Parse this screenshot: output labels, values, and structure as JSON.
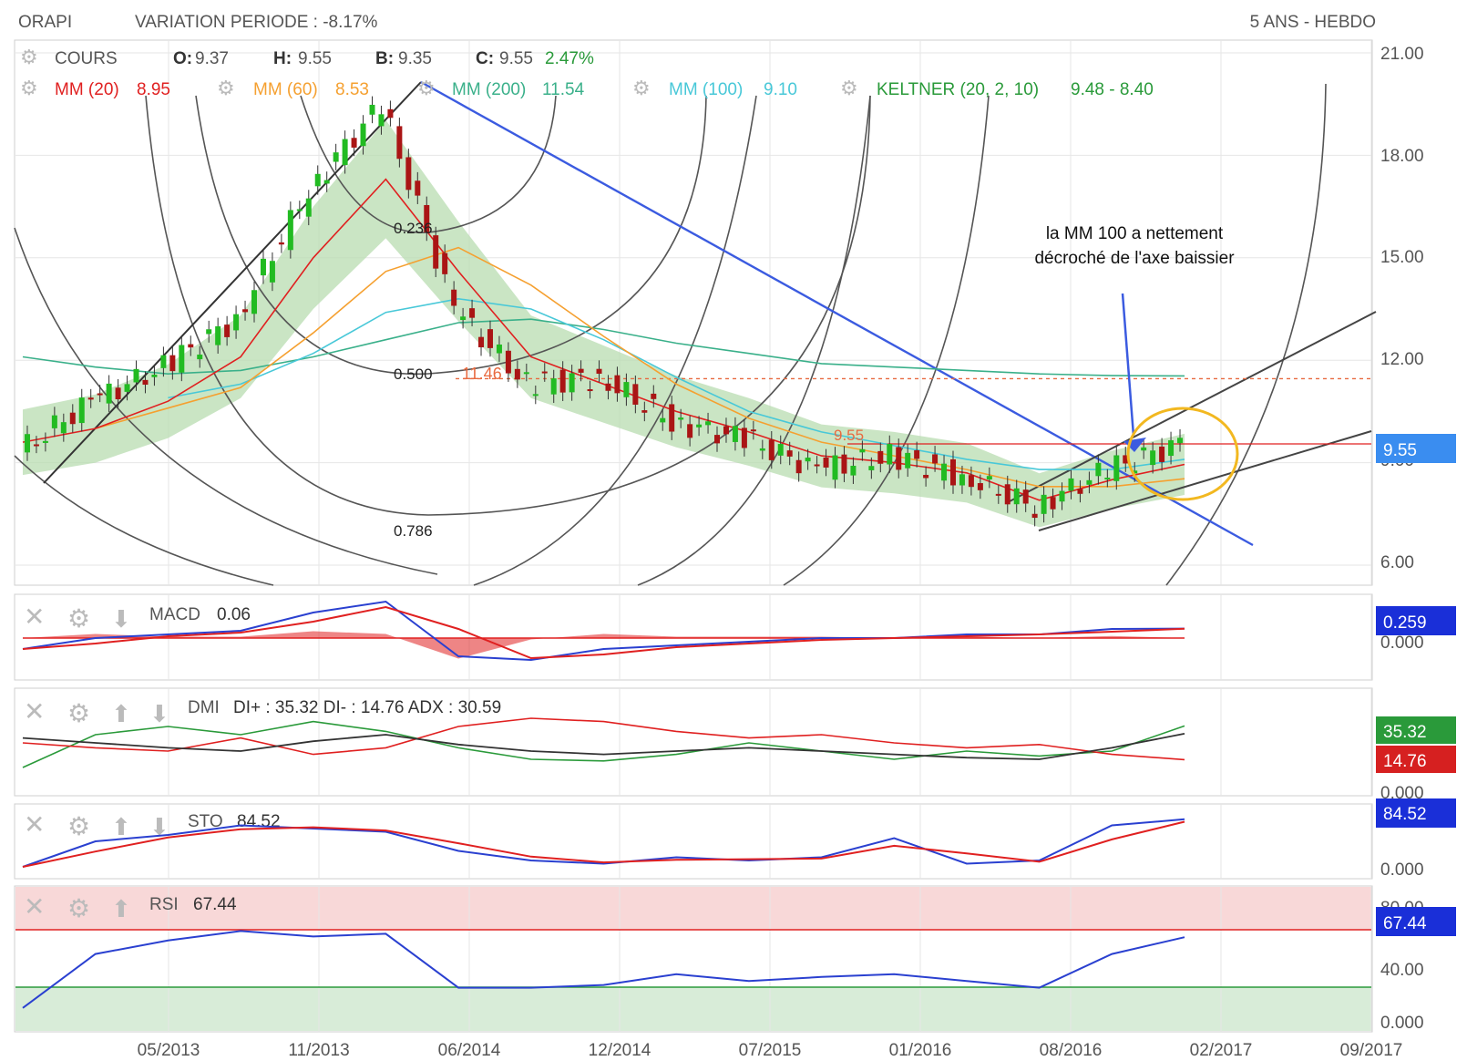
{
  "header": {
    "symbol": "ORAPI",
    "variation": "VARIATION PERIODE : -8.17%",
    "period": "5 ANS - HEBDO"
  },
  "colors": {
    "red": "#e02020",
    "orange": "#f5a030",
    "green": "#2a9a3a",
    "teal": "#3ab08a",
    "cyan": "#48c8d8",
    "blue": "#2a40d0",
    "gray": "#999999",
    "keltner_fill": "#b8dcb0",
    "rsi_over": "#f8d8d8",
    "rsi_under": "#d8ecd8",
    "fib": "#555555",
    "annot_circle": "#f2b820"
  },
  "legend": {
    "cours": "COURS",
    "o_label": "O:",
    "o_value": "9.37",
    "h_label": "H:",
    "h_value": "9.55",
    "b_label": "B:",
    "b_value": "9.35",
    "c_label": "C:",
    "c_value": "9.55",
    "c_change": "2.47%",
    "mm20_label": "MM (20)",
    "mm20_value": "8.95",
    "mm60_label": "MM (60)",
    "mm60_value": "8.53",
    "mm200_label": "MM (200)",
    "mm200_value": "11.54",
    "mm100_label": "MM (100)",
    "mm100_value": "9.10",
    "keltner_label": "KELTNER (20, 2, 10)",
    "keltner_value": "9.48 - 8.40"
  },
  "annotation": {
    "line1": "la MM 100 a nettement",
    "line2": "décroché de l'axe baissier"
  },
  "fib_labels": [
    "0.236",
    "0.500",
    "0.786"
  ],
  "level_labels": {
    "hline_red": "11.46",
    "current": "9.55"
  },
  "price_axis": {
    "ticks": [
      "6.00",
      "9.00",
      "12.00",
      "15.00",
      "18.00",
      "21.00"
    ],
    "badge": "9.55"
  },
  "x_axis": {
    "ticks": [
      "05/2013",
      "11/2013",
      "06/2014",
      "12/2014",
      "07/2015",
      "01/2016",
      "08/2016",
      "02/2017",
      "09/2017"
    ]
  },
  "indicators": {
    "macd": {
      "label": "MACD",
      "value": "0.06",
      "axis_tick": "0.000",
      "badge": "0.259"
    },
    "dmi": {
      "label": "DMI",
      "values": "DI+ : 35.32 DI- : 14.76 ADX : 30.59",
      "axis_tick": "0.000",
      "badge_plus": "35.32",
      "badge_minus": "14.76"
    },
    "sto": {
      "label": "STO",
      "value": "84.52",
      "axis_tick": "0.000",
      "badge": "84.52"
    },
    "rsi": {
      "label": "RSI",
      "value": "67.44",
      "axis_ticks": [
        "0.000",
        "40.00",
        "80.00"
      ],
      "badge": "67.44"
    }
  },
  "chart_data": {
    "type": "line",
    "x": [
      "2013-01",
      "2013-04",
      "2013-07",
      "2013-10",
      "2014-01",
      "2014-04",
      "2014-07",
      "2014-10",
      "2015-01",
      "2015-04",
      "2015-07",
      "2015-10",
      "2016-01",
      "2016-04",
      "2016-07",
      "2016-10",
      "2017-01"
    ],
    "ylim": [
      6,
      21
    ],
    "series": [
      {
        "name": "COURS",
        "values": [
          9.3,
          10.8,
          11.8,
          13.2,
          17.0,
          19.5,
          13.5,
          11.3,
          11.5,
          10.2,
          9.7,
          8.8,
          9.2,
          8.6,
          7.7,
          8.8,
          9.55
        ]
      },
      {
        "name": "MM (20)",
        "values": [
          9.6,
          10.0,
          10.8,
          12.1,
          15.0,
          17.3,
          14.6,
          12.1,
          11.3,
          10.5,
          9.9,
          9.2,
          9.0,
          8.7,
          7.9,
          8.5,
          8.95
        ]
      },
      {
        "name": "MM (60)",
        "values": [
          null,
          10.0,
          10.6,
          11.2,
          12.8,
          14.6,
          15.3,
          14.2,
          12.7,
          11.3,
          10.3,
          9.6,
          9.2,
          8.8,
          8.3,
          8.3,
          8.53
        ]
      },
      {
        "name": "MM (100)",
        "values": [
          null,
          null,
          10.9,
          11.3,
          12.2,
          13.4,
          13.8,
          13.5,
          12.6,
          11.5,
          10.5,
          9.9,
          9.5,
          9.1,
          8.8,
          8.8,
          9.1
        ]
      },
      {
        "name": "MM (200)",
        "values": [
          12.1,
          11.8,
          11.6,
          11.7,
          12.1,
          12.6,
          13.1,
          13.2,
          12.9,
          12.5,
          12.2,
          11.9,
          11.8,
          11.7,
          11.6,
          11.55,
          11.54
        ]
      }
    ],
    "macd": {
      "values": [
        -0.3,
        0.0,
        0.1,
        0.2,
        0.7,
        1.0,
        -0.5,
        -0.6,
        -0.3,
        -0.2,
        -0.1,
        0.0,
        0.0,
        0.1,
        0.1,
        0.25,
        0.26
      ]
    },
    "dmi": {
      "di_plus": [
        10,
        30,
        35,
        30,
        38,
        32,
        22,
        15,
        14,
        18,
        25,
        20,
        15,
        20,
        17,
        20,
        35.32
      ],
      "di_minus": [
        25,
        22,
        20,
        28,
        18,
        22,
        35,
        40,
        38,
        32,
        28,
        30,
        25,
        22,
        24,
        18,
        14.76
      ],
      "adx": [
        28,
        25,
        22,
        20,
        26,
        30,
        24,
        20,
        18,
        20,
        22,
        20,
        18,
        16,
        15,
        22,
        30.59
      ]
    },
    "sto": {
      "values": [
        10,
        50,
        60,
        75,
        70,
        65,
        35,
        20,
        15,
        25,
        20,
        25,
        55,
        15,
        20,
        75,
        84.52
      ]
    },
    "rsi": {
      "values": [
        15,
        55,
        65,
        72,
        68,
        70,
        30,
        30,
        32,
        40,
        35,
        38,
        40,
        35,
        30,
        55,
        67.44
      ]
    }
  }
}
